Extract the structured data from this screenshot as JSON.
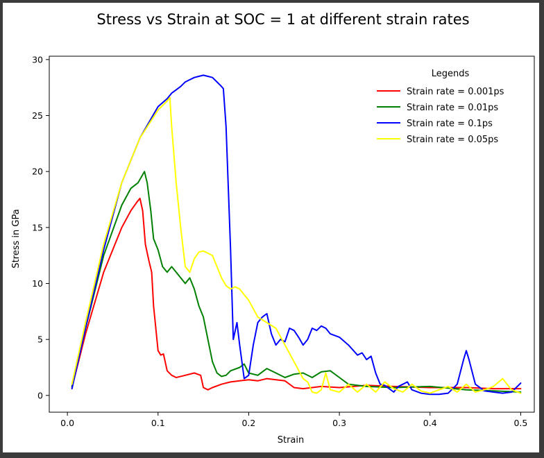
{
  "chart_data": {
    "type": "line",
    "title": "Stress vs Strain at SOC = 1 at different strain rates",
    "xlabel": "Strain",
    "ylabel": "Stress in GPa",
    "xlim": [
      -0.02,
      0.515
    ],
    "ylim": [
      -1.5,
      30.3
    ],
    "xticks": [
      0.0,
      0.1,
      0.2,
      0.3,
      0.4,
      0.5
    ],
    "xtick_labels": [
      "0.0",
      "0.1",
      "0.2",
      "0.3",
      "0.4",
      "0.5"
    ],
    "yticks": [
      0,
      5,
      10,
      15,
      20,
      25,
      30
    ],
    "ytick_labels": [
      "0",
      "5",
      "10",
      "15",
      "20",
      "25",
      "30"
    ],
    "grid": false,
    "legend": {
      "title": "Legends",
      "position": "top-right"
    },
    "series": [
      {
        "name": "Strain rate = 0.001ps",
        "color": "#ff0000",
        "x": [
          0.005,
          0.02,
          0.04,
          0.06,
          0.07,
          0.077,
          0.08,
          0.083,
          0.086,
          0.09,
          0.093,
          0.095,
          0.1,
          0.103,
          0.106,
          0.11,
          0.115,
          0.12,
          0.13,
          0.14,
          0.147,
          0.15,
          0.155,
          0.16,
          0.17,
          0.18,
          0.19,
          0.2,
          0.21,
          0.22,
          0.23,
          0.24,
          0.25,
          0.26,
          0.28,
          0.3,
          0.33,
          0.36,
          0.4,
          0.44,
          0.47,
          0.5
        ],
        "y": [
          0.7,
          5.5,
          11.0,
          15.0,
          16.5,
          17.3,
          17.6,
          16.5,
          13.5,
          12.0,
          11.0,
          8.0,
          4.0,
          3.6,
          3.7,
          2.2,
          1.8,
          1.6,
          1.8,
          2.0,
          1.8,
          0.7,
          0.5,
          0.7,
          1.0,
          1.2,
          1.3,
          1.4,
          1.3,
          1.5,
          1.4,
          1.3,
          0.7,
          0.6,
          0.8,
          0.7,
          0.9,
          0.8,
          0.7,
          0.7,
          0.6,
          0.6
        ]
      },
      {
        "name": "Strain rate = 0.01ps",
        "color": "#008000",
        "x": [
          0.005,
          0.02,
          0.04,
          0.06,
          0.07,
          0.078,
          0.085,
          0.088,
          0.092,
          0.095,
          0.1,
          0.105,
          0.11,
          0.115,
          0.12,
          0.13,
          0.135,
          0.14,
          0.145,
          0.15,
          0.155,
          0.16,
          0.165,
          0.17,
          0.175,
          0.18,
          0.19,
          0.195,
          0.2,
          0.21,
          0.22,
          0.23,
          0.24,
          0.25,
          0.26,
          0.27,
          0.28,
          0.29,
          0.3,
          0.31,
          0.33,
          0.36,
          0.4,
          0.44,
          0.47,
          0.5
        ],
        "y": [
          0.8,
          6.0,
          12.5,
          17.0,
          18.5,
          19.0,
          20.0,
          19.0,
          16.5,
          14.0,
          13.0,
          11.5,
          11.0,
          11.5,
          11.0,
          10.0,
          10.5,
          9.5,
          8.0,
          7.0,
          5.0,
          3.0,
          2.0,
          1.7,
          1.8,
          2.2,
          2.5,
          2.8,
          2.0,
          1.8,
          2.4,
          2.0,
          1.6,
          1.9,
          2.0,
          1.6,
          2.1,
          2.2,
          1.6,
          1.0,
          0.8,
          0.7,
          0.8,
          0.5,
          0.4,
          0.3
        ]
      },
      {
        "name": "Strain rate = 0.1ps",
        "color": "#0000ff",
        "x": [
          0.005,
          0.02,
          0.04,
          0.06,
          0.08,
          0.1,
          0.11,
          0.115,
          0.12,
          0.125,
          0.13,
          0.135,
          0.14,
          0.145,
          0.15,
          0.155,
          0.16,
          0.165,
          0.17,
          0.172,
          0.175,
          0.18,
          0.183,
          0.187,
          0.19,
          0.195,
          0.2,
          0.205,
          0.21,
          0.215,
          0.22,
          0.225,
          0.23,
          0.235,
          0.24,
          0.245,
          0.25,
          0.255,
          0.26,
          0.265,
          0.27,
          0.275,
          0.28,
          0.285,
          0.29,
          0.3,
          0.31,
          0.32,
          0.325,
          0.33,
          0.335,
          0.34,
          0.345,
          0.35,
          0.36,
          0.365,
          0.37,
          0.375,
          0.38,
          0.39,
          0.4,
          0.41,
          0.42,
          0.43,
          0.437,
          0.44,
          0.443,
          0.45,
          0.46,
          0.47,
          0.48,
          0.49,
          0.5
        ],
        "y": [
          0.6,
          6.0,
          13.0,
          19.0,
          23.0,
          25.8,
          26.5,
          27.0,
          27.3,
          27.6,
          28.0,
          28.2,
          28.4,
          28.5,
          28.6,
          28.5,
          28.4,
          28.0,
          27.6,
          27.4,
          24.0,
          13.0,
          5.0,
          6.5,
          4.5,
          1.5,
          1.8,
          4.5,
          6.5,
          7.0,
          7.3,
          5.5,
          4.5,
          5.0,
          4.8,
          6.0,
          5.8,
          5.2,
          4.5,
          5.0,
          6.0,
          5.8,
          6.2,
          6.0,
          5.5,
          5.2,
          4.5,
          3.6,
          3.8,
          3.2,
          3.5,
          2.0,
          1.0,
          0.9,
          0.3,
          0.8,
          1.0,
          1.2,
          0.5,
          0.2,
          0.1,
          0.1,
          0.2,
          1.0,
          3.2,
          4.0,
          3.2,
          1.0,
          0.4,
          0.3,
          0.2,
          0.3,
          1.1
        ]
      },
      {
        "name": "Strain rate = 0.05ps",
        "color": "#ffff00",
        "x": [
          0.005,
          0.02,
          0.04,
          0.06,
          0.08,
          0.1,
          0.11,
          0.113,
          0.115,
          0.12,
          0.125,
          0.13,
          0.135,
          0.14,
          0.145,
          0.15,
          0.155,
          0.16,
          0.165,
          0.17,
          0.175,
          0.18,
          0.185,
          0.19,
          0.2,
          0.21,
          0.22,
          0.23,
          0.24,
          0.25,
          0.26,
          0.265,
          0.27,
          0.275,
          0.28,
          0.285,
          0.29,
          0.3,
          0.31,
          0.32,
          0.33,
          0.34,
          0.35,
          0.36,
          0.37,
          0.38,
          0.39,
          0.4,
          0.41,
          0.42,
          0.43,
          0.44,
          0.45,
          0.46,
          0.47,
          0.48,
          0.49,
          0.5
        ],
        "y": [
          1.0,
          6.5,
          13.5,
          19.0,
          23.0,
          25.5,
          26.3,
          26.6,
          24.0,
          19.0,
          15.0,
          11.5,
          11.0,
          12.2,
          12.8,
          12.9,
          12.7,
          12.5,
          11.5,
          10.5,
          9.8,
          9.5,
          9.7,
          9.5,
          8.5,
          7.0,
          6.5,
          6.0,
          4.5,
          3.0,
          1.5,
          1.2,
          0.3,
          0.2,
          0.5,
          2.0,
          0.5,
          0.3,
          1.0,
          0.3,
          1.0,
          0.3,
          1.2,
          0.6,
          0.3,
          1.0,
          0.4,
          0.2,
          0.5,
          0.8,
          0.3,
          1.0,
          0.3,
          0.5,
          0.8,
          1.5,
          0.5,
          0.2
        ]
      }
    ]
  }
}
